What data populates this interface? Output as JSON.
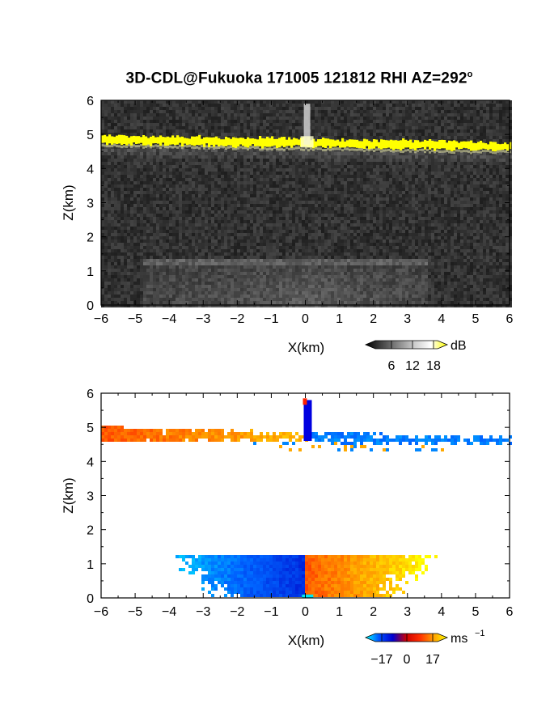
{
  "title": {
    "main": "3D-CDL@Fukuoka 171005 121812 RHI AZ=292",
    "sup": "o"
  },
  "chart_data": [
    {
      "type": "heatmap",
      "panel": "top",
      "quantity": "backscatter intensity",
      "xlabel": "X(km)",
      "ylabel": "Z(km)",
      "xlim": [
        -6,
        6
      ],
      "ylim": [
        0,
        6
      ],
      "xticks": [
        "-6",
        "-5",
        "-4",
        "-3",
        "-2",
        "-1",
        "0",
        "1",
        "2",
        "3",
        "4",
        "5",
        "6"
      ],
      "yticks": [
        "0",
        "1",
        "2",
        "3",
        "4",
        "5",
        "6"
      ],
      "colorbar": {
        "unit": "dB",
        "ticks": [
          "6",
          "12",
          "18"
        ],
        "colors": [
          "#000000",
          "#444444",
          "#888888",
          "#cccccc",
          "#ffffff",
          "#ffff00"
        ]
      },
      "features": [
        {
          "name": "bright layer",
          "x_range": [
            -6,
            6
          ],
          "z_start": 4.85,
          "z_end": 4.65,
          "color": "#ffff00"
        },
        {
          "name": "bright spike",
          "x": 0.05,
          "z_range": [
            4.7,
            5.9
          ]
        },
        {
          "name": "faint layer",
          "x_range": [
            -4.5,
            3
          ],
          "z": 1.25
        }
      ]
    },
    {
      "type": "heatmap",
      "panel": "bottom",
      "quantity": "radial velocity",
      "xlabel": "X(km)",
      "ylabel": "Z(km)",
      "xlim": [
        -6,
        6
      ],
      "ylim": [
        0,
        6
      ],
      "xticks": [
        "-6",
        "-5",
        "-4",
        "-3",
        "-2",
        "-1",
        "0",
        "1",
        "2",
        "3",
        "4",
        "5",
        "6"
      ],
      "yticks": [
        "0",
        "1",
        "2",
        "3",
        "4",
        "5",
        "6"
      ],
      "colorbar": {
        "unit": "ms",
        "unit_sup": "-1",
        "ticks": [
          "-17",
          "0",
          "17"
        ],
        "min": -17,
        "max": 17,
        "colors": [
          "#00ffff",
          "#0050ff",
          "#0000d0",
          "#d00000",
          "#ff3000",
          "#ffa000",
          "#ffff00"
        ]
      },
      "features": [
        {
          "name": "upper layer west",
          "x_range": [
            -6,
            0
          ],
          "z_range": [
            4.4,
            5.05
          ],
          "velocity": 12
        },
        {
          "name": "upper layer east",
          "x_range": [
            0,
            6
          ],
          "z_range": [
            4.3,
            5.0
          ],
          "velocity": -12
        },
        {
          "name": "lower layer west",
          "x_range": [
            -4.2,
            0
          ],
          "z_range": [
            0,
            1.3
          ],
          "velocity": -10
        },
        {
          "name": "lower layer east",
          "x_range": [
            0,
            4.0
          ],
          "z_range": [
            0,
            1.3
          ],
          "velocity": 12
        }
      ]
    }
  ]
}
